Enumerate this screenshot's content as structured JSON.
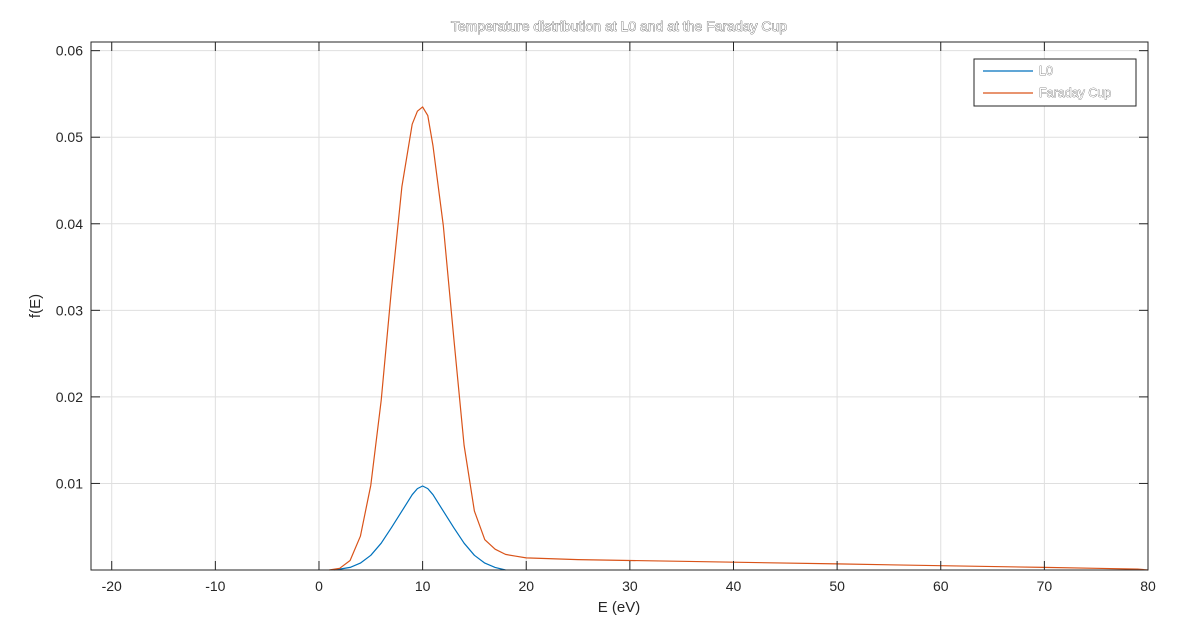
{
  "chart_data": {
    "type": "line",
    "title": "Temperature distribution at L0 and at the Faraday Cup",
    "xlabel": "E (eV)",
    "ylabel": "f(E)",
    "xlim": [
      -22,
      80
    ],
    "ylim": [
      0,
      0.061
    ],
    "xticks": [
      -20,
      -10,
      0,
      10,
      20,
      30,
      40,
      50,
      60,
      70,
      80
    ],
    "xtick_labels": [
      "-20",
      "-10",
      "0",
      "10",
      "20",
      "30",
      "40",
      "50",
      "60",
      "70",
      "80"
    ],
    "yticks": [
      0.01,
      0.02,
      0.03,
      0.04,
      0.05,
      0.06
    ],
    "ytick_labels": [
      "0.01",
      "0.02",
      "0.03",
      "0.04",
      "0.05",
      "0.06"
    ],
    "grid": true,
    "legend_position": "top-right",
    "series": [
      {
        "name": "L0",
        "color": "#0072BD",
        "x": [
          1.5,
          2,
          3,
          4,
          5,
          6,
          7,
          8,
          9,
          9.5,
          10,
          10.5,
          11,
          12,
          13,
          14,
          15,
          16,
          17,
          18
        ],
        "y": [
          0.0,
          0.0001,
          0.0003,
          0.0008,
          0.0017,
          0.0031,
          0.0049,
          0.0068,
          0.0087,
          0.0094,
          0.0097,
          0.0094,
          0.0087,
          0.0068,
          0.0049,
          0.0031,
          0.0017,
          0.0008,
          0.0003,
          0.0
        ]
      },
      {
        "name": "Faraday Cup",
        "color": "#D95319",
        "x": [
          1,
          2,
          3,
          4,
          5,
          6,
          7,
          8,
          9,
          9.5,
          10,
          10.5,
          11,
          12,
          13,
          14,
          15,
          16,
          17,
          18,
          19,
          20,
          25,
          30,
          35,
          40,
          50,
          60,
          70,
          75,
          79,
          80
        ],
        "y": [
          0.0,
          0.0002,
          0.0011,
          0.0039,
          0.0098,
          0.0196,
          0.0325,
          0.0443,
          0.0515,
          0.053,
          0.0535,
          0.0525,
          0.049,
          0.0398,
          0.0269,
          0.0144,
          0.0068,
          0.0035,
          0.0024,
          0.0018,
          0.0016,
          0.0014,
          0.0012,
          0.0011,
          0.001,
          0.0009,
          0.0007,
          0.0005,
          0.0003,
          0.0002,
          0.0001,
          0.0
        ]
      }
    ]
  }
}
